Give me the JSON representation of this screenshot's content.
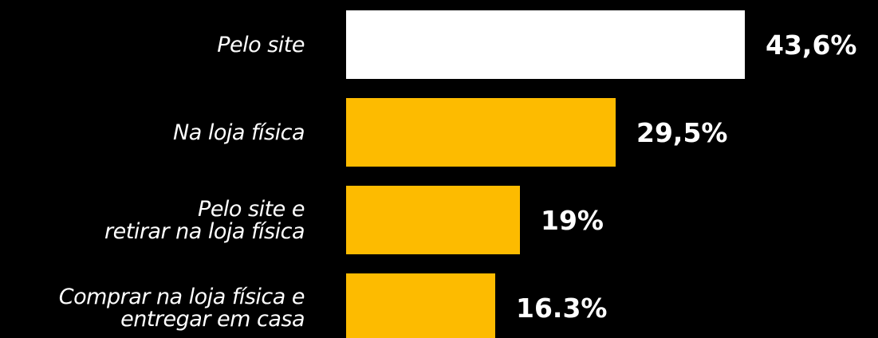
{
  "chart_data": {
    "type": "bar",
    "orientation": "horizontal",
    "categories": [
      [
        "Pelo site"
      ],
      [
        "Na loja física"
      ],
      [
        "Pelo site e",
        "retirar na loja física"
      ],
      [
        "Comprar na loja física e",
        "entregar em casa"
      ]
    ],
    "values": [
      43.6,
      29.5,
      19,
      16.3
    ],
    "value_labels": [
      "43,6%",
      "29,5%",
      "19%",
      "16.3%"
    ],
    "bar_colors": [
      "#ffffff",
      "#fdbb00",
      "#fdbb00",
      "#fdbb00"
    ],
    "xlim": [
      0,
      43.6
    ],
    "grid": false,
    "legend": "none"
  },
  "colors": {
    "background": "#000000",
    "text": "#ffffff"
  }
}
